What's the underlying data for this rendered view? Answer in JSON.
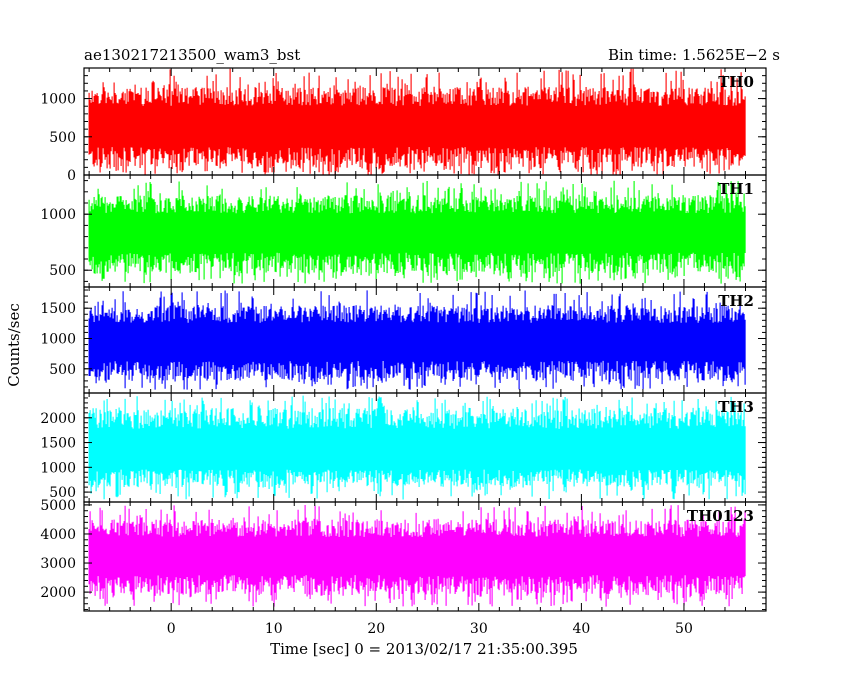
{
  "header": {
    "title_left": "ae130217213500_wam3_bst",
    "title_right": "Bin time: 1.5625E−2 s"
  },
  "chart_data": {
    "type": "line",
    "x_range": [
      -8.5,
      58
    ],
    "x_data_range": [
      -8,
      56
    ],
    "xlabel": "Time [sec] 0 = 2013/02/17 21:35:00.395",
    "ylabel": "Counts/sec",
    "x_ticks": [
      0,
      10,
      20,
      30,
      40,
      50
    ],
    "panels": [
      {
        "name": "TH0",
        "color": "#ff0000",
        "ylim": [
          0,
          1400
        ],
        "y_ticks": [
          0,
          500,
          1000
        ],
        "tick_labels": [
          "0",
          "500",
          "1000"
        ],
        "low": 80,
        "high": 1150,
        "mean": 600,
        "spike_low": 0,
        "spike_high": 1400
      },
      {
        "name": "TH1",
        "color": "#00ff00",
        "ylim": [
          350,
          1350
        ],
        "y_ticks": [
          500,
          1000
        ],
        "tick_labels": [
          "500",
          "1000"
        ],
        "low": 470,
        "high": 1170,
        "mean": 810,
        "spike_low": 380,
        "spike_high": 1300
      },
      {
        "name": "TH2",
        "color": "#0000ff",
        "ylim": [
          100,
          1850
        ],
        "y_ticks": [
          500,
          1000,
          1500
        ],
        "tick_labels": [
          "500",
          "1000",
          "1500"
        ],
        "low": 300,
        "high": 1550,
        "mean": 900,
        "spike_low": 150,
        "spike_high": 1800
      },
      {
        "name": "TH3",
        "color": "#00ffff",
        "ylim": [
          300,
          2500
        ],
        "y_ticks": [
          500,
          1000,
          1500,
          2000
        ],
        "tick_labels": [
          "500",
          "1000",
          "1500",
          "2000"
        ],
        "low": 600,
        "high": 2200,
        "mean": 1250,
        "spike_low": 350,
        "spike_high": 2450
      },
      {
        "name": "TH0123",
        "color": "#ff00ff",
        "ylim": [
          1350,
          5100
        ],
        "y_ticks": [
          2000,
          3000,
          4000,
          5000
        ],
        "tick_labels": [
          "2000",
          "3000",
          "4000",
          "5000"
        ],
        "low": 1900,
        "high": 4500,
        "mean": 3150,
        "spike_low": 1500,
        "spike_high": 5000
      }
    ]
  }
}
